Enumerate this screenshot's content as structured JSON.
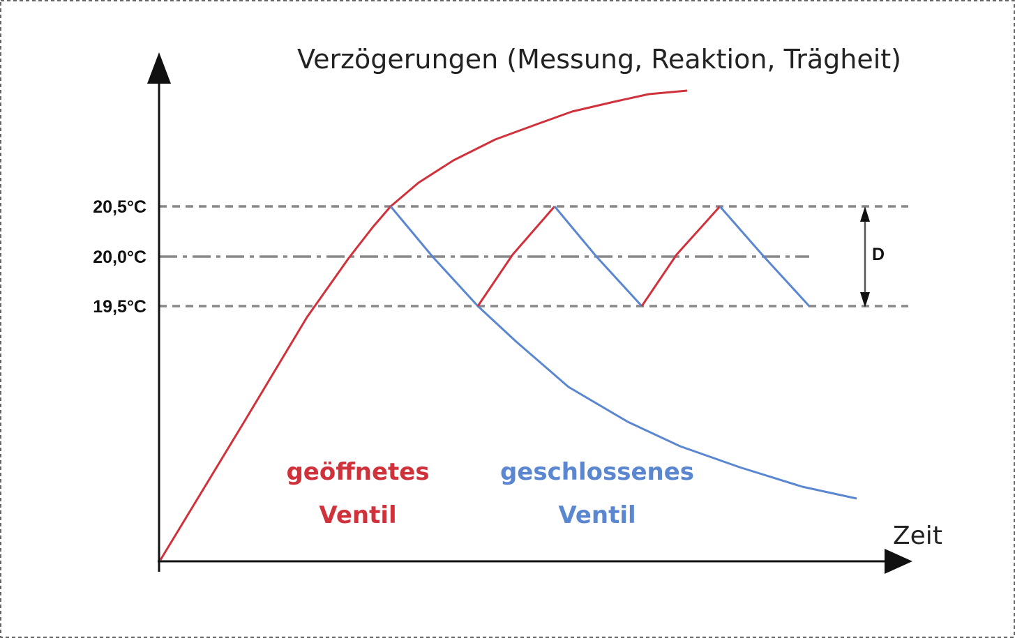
{
  "title": "Verzögerungen (Messung, Reaktion, Trägheit)",
  "y_labels": [
    "20,5°C",
    "20,0°C",
    "19,5°C"
  ],
  "x_label": "Zeit",
  "band_label": "D",
  "legend": {
    "open": [
      "geöffnetes",
      "Ventil"
    ],
    "closed": [
      "geschlossenes",
      "Ventil"
    ]
  }
}
